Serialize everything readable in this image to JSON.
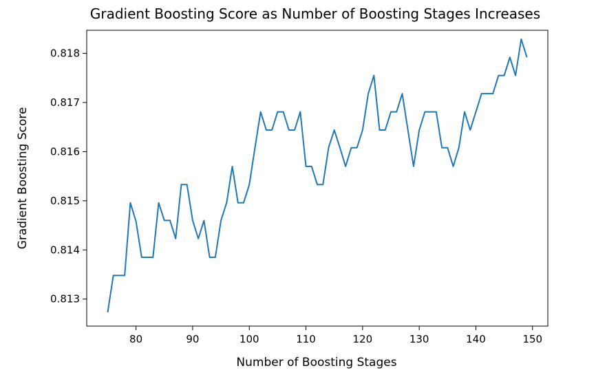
{
  "chart_data": {
    "type": "line",
    "title": "Gradient Boosting Score as Number of Boosting Stages Increases",
    "xlabel": "Number of Boosting Stages",
    "ylabel": "Gradient Boosting Score",
    "xlim": [
      71.3,
      152.7
    ],
    "ylim": [
      0.81245,
      0.81847
    ],
    "xticks": [
      80,
      90,
      100,
      110,
      120,
      130,
      140,
      150
    ],
    "yticks": [
      0.813,
      0.814,
      0.815,
      0.816,
      0.817,
      0.818
    ],
    "ytick_labels": [
      "0.813",
      "0.814",
      "0.815",
      "0.816",
      "0.817",
      "0.818"
    ],
    "xtick_labels": [
      "80",
      "90",
      "100",
      "110",
      "120",
      "130",
      "140",
      "150"
    ],
    "grid": false,
    "colors": {
      "line": "#1f77b4",
      "axis": "#000000"
    },
    "series": [
      {
        "x": [
          75,
          76,
          77,
          78,
          79,
          80,
          81,
          82,
          83,
          84,
          85,
          86,
          87,
          88,
          89,
          90,
          91,
          92,
          93,
          94,
          95,
          96,
          97,
          98,
          99,
          100,
          101,
          102,
          103,
          104,
          105,
          106,
          107,
          108,
          109,
          110,
          111,
          112,
          113,
          114,
          115,
          116,
          117,
          118,
          119,
          120,
          121,
          122,
          123,
          124,
          125,
          126,
          127,
          128,
          129,
          130,
          131,
          132,
          133,
          134,
          135,
          136,
          137,
          138,
          139,
          140,
          141,
          142,
          143,
          144,
          145,
          146,
          147,
          148,
          149
        ],
        "values": [
          0.81273,
          0.81348,
          0.81348,
          0.81348,
          0.81496,
          0.81458,
          0.81385,
          0.81385,
          0.81385,
          0.81496,
          0.8146,
          0.8146,
          0.81423,
          0.81533,
          0.81533,
          0.8146,
          0.81423,
          0.8146,
          0.81385,
          0.81385,
          0.8146,
          0.81496,
          0.8157,
          0.81496,
          0.81496,
          0.81533,
          0.81608,
          0.81681,
          0.81644,
          0.81644,
          0.81681,
          0.81681,
          0.81644,
          0.81644,
          0.81681,
          0.8157,
          0.8157,
          0.81533,
          0.81533,
          0.81608,
          0.81644,
          0.81608,
          0.8157,
          0.81608,
          0.81608,
          0.81644,
          0.81718,
          0.81755,
          0.81644,
          0.81644,
          0.81681,
          0.81681,
          0.81718,
          0.81644,
          0.8157,
          0.81644,
          0.81681,
          0.81681,
          0.81681,
          0.81608,
          0.81608,
          0.8157,
          0.81608,
          0.81681,
          0.81644,
          0.81681,
          0.81718,
          0.81718,
          0.81718,
          0.81755,
          0.81755,
          0.81792,
          0.81755,
          0.81829,
          0.81792
        ]
      }
    ]
  }
}
